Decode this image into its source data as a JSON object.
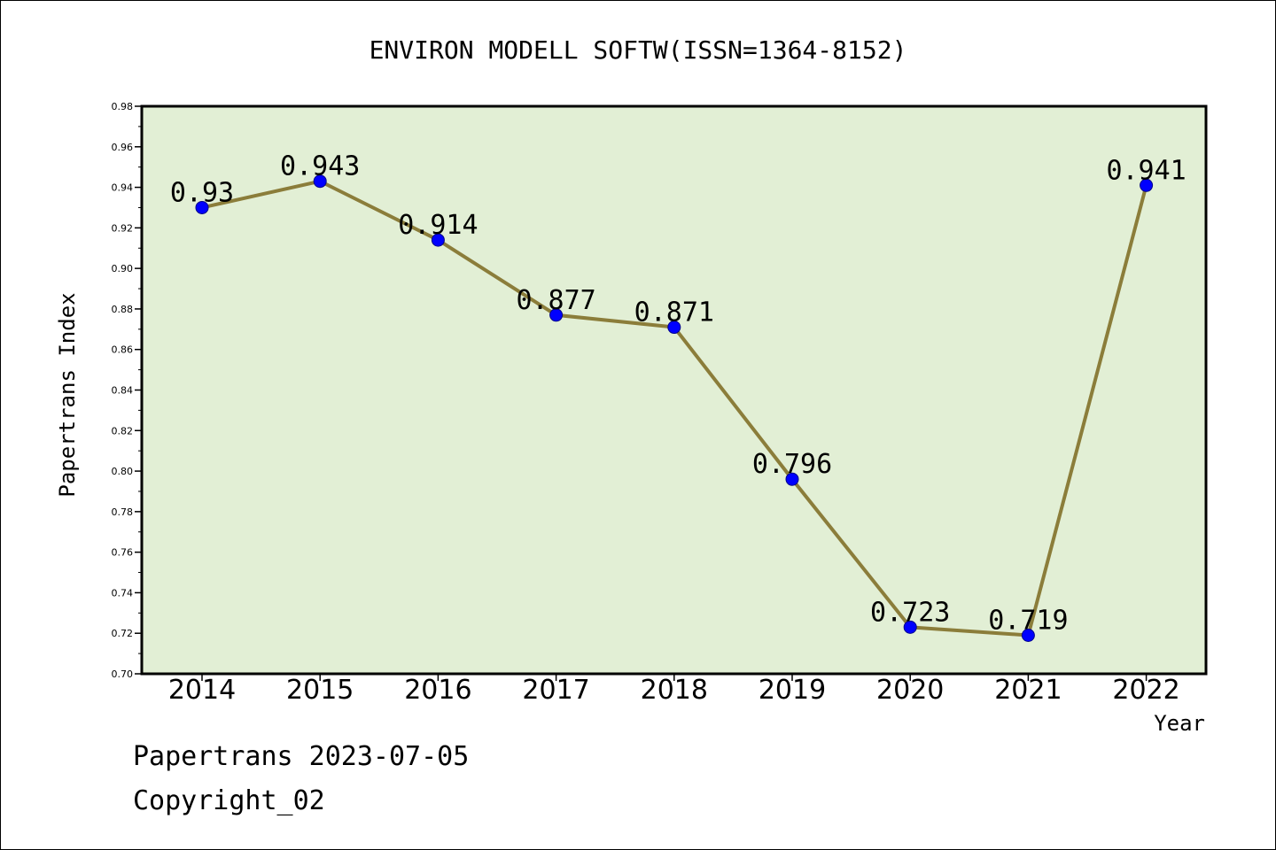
{
  "chart_data": {
    "type": "line",
    "title": "ENVIRON MODELL SOFTW(ISSN=1364-8152)",
    "xlabel": "Year",
    "ylabel": "Papertrans Index",
    "categories": [
      "2014",
      "2015",
      "2016",
      "2017",
      "2018",
      "2019",
      "2020",
      "2021",
      "2022"
    ],
    "values": [
      0.93,
      0.943,
      0.914,
      0.877,
      0.871,
      0.796,
      0.723,
      0.719,
      0.941
    ],
    "data_labels": [
      "0.93",
      "0.943",
      "0.914",
      "0.877",
      "0.871",
      "0.796",
      "0.723",
      "0.719",
      "0.941"
    ],
    "ylim": [
      0.7,
      0.98
    ],
    "yticks": [
      "0.70",
      "0.72",
      "0.74",
      "0.76",
      "0.78",
      "0.80",
      "0.82",
      "0.84",
      "0.86",
      "0.88",
      "0.90",
      "0.92",
      "0.94",
      "0.96",
      "0.98"
    ],
    "grid": false,
    "colors": {
      "plot_background": "#e2efd5",
      "line": "#8b7d3a",
      "marker": "#0000ff"
    }
  },
  "footer": {
    "line1": "Papertrans 2023-07-05",
    "line2": "Copyright_02"
  }
}
